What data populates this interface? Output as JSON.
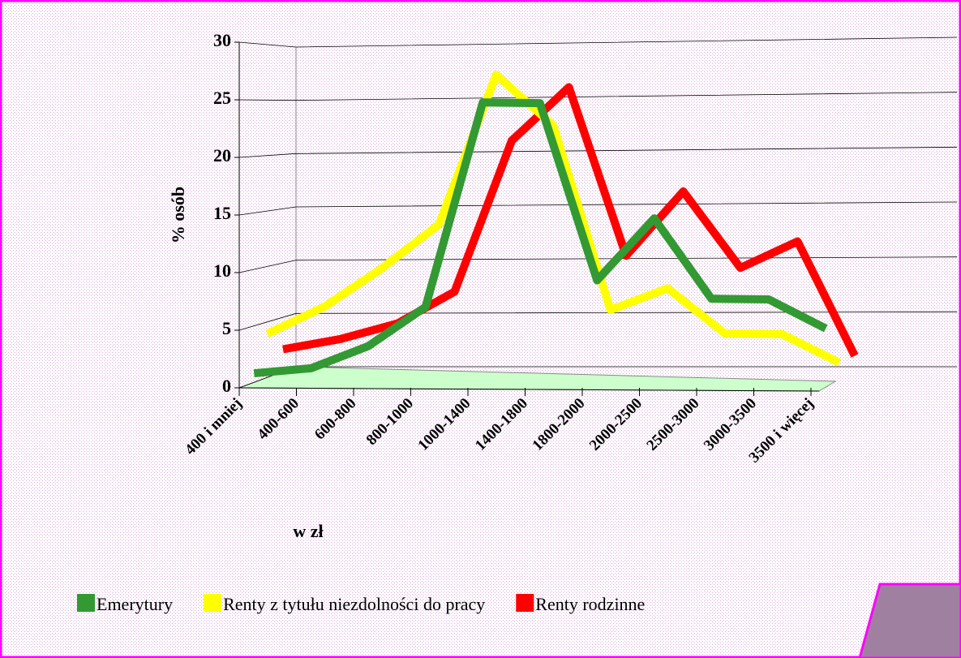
{
  "chart_data": {
    "type": "line",
    "y_label": "% osób",
    "x_label": "w zł",
    "categories": [
      "400 i mniej",
      "400-600",
      "600-800",
      "800-1000",
      "1000-1400",
      "1400-1800",
      "1800-2000",
      "2000-2500",
      "2500-3000",
      "3000-3500",
      "3500 i więcej"
    ],
    "series": [
      {
        "name": "Emerytury",
        "color": "#339933",
        "values": [
          1,
          1.5,
          3.5,
          7,
          25,
          25,
          9.5,
          15,
          8,
          8,
          5.5
        ]
      },
      {
        "name": "Renty z tytułu niezdolności do pracy",
        "color": "#ffff00",
        "values": [
          4,
          6.5,
          10,
          14,
          27.5,
          23,
          6.5,
          8.5,
          4.5,
          4.5,
          2
        ]
      },
      {
        "name": "Renty rodzinne",
        "color": "#ff0000",
        "values": [
          2,
          3,
          4.5,
          7.5,
          21.5,
          26.5,
          11,
          17,
          10,
          12.5,
          2
        ]
      }
    ],
    "ylim": [
      0,
      30
    ],
    "yticks": [
      0,
      5,
      10,
      15,
      20,
      25,
      30
    ],
    "grid": true
  }
}
